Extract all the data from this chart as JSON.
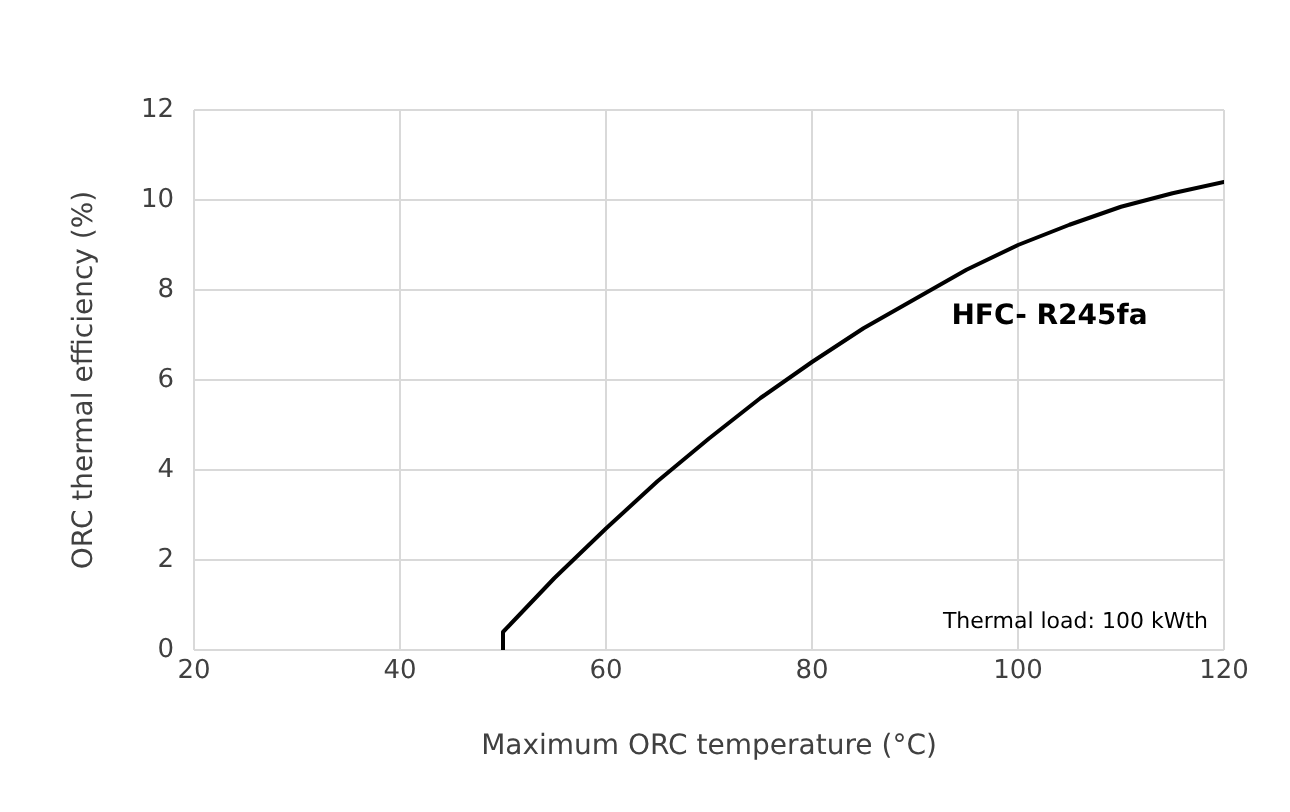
{
  "chart_data": {
    "type": "line",
    "xlabel": "Maximum ORC temperature (°C)",
    "ylabel": "ORC thermal efficiency (%)",
    "x": [
      50,
      50,
      55,
      60,
      65,
      70,
      75,
      80,
      85,
      90,
      95,
      100,
      105,
      110,
      115,
      120
    ],
    "series": [
      {
        "name": "HFC- R245fa",
        "color": "#000000",
        "values": [
          0,
          0.4,
          1.6,
          2.7,
          3.75,
          4.7,
          5.6,
          6.4,
          7.15,
          7.8,
          8.45,
          9.0,
          9.45,
          9.85,
          10.15,
          10.4
        ]
      }
    ],
    "xlim": [
      20,
      120
    ],
    "xticks": [
      20,
      40,
      60,
      80,
      100,
      120
    ],
    "ylim": [
      0,
      12
    ],
    "yticks": [
      0,
      2,
      4,
      6,
      8,
      10,
      12
    ],
    "grid": true,
    "legend": false,
    "marker": "none",
    "line_style": "solid",
    "annotations": [
      "Thermal load: 100 kWth"
    ]
  }
}
